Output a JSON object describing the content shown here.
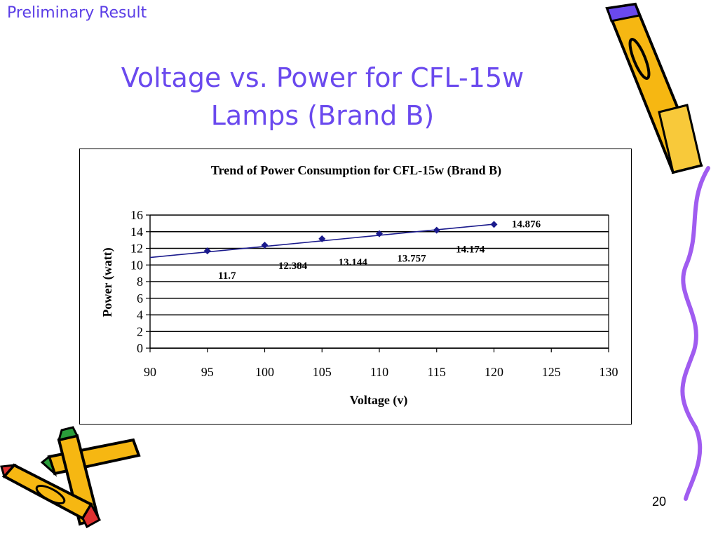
{
  "slide": {
    "header": "Preliminary Result",
    "title_line1": "Voltage vs. Power for CFL-15w",
    "title_line2": "Lamps (Brand B)",
    "page_number": "20"
  },
  "colors": {
    "header": "#5a3de6",
    "title": "#6a49ee",
    "series": "#1a1a8c",
    "squiggle": "#a05cf0"
  },
  "decorations": {
    "top_right": "pencil-icon",
    "bottom_left": "crayons-icon",
    "right_edge": "squiggle-line"
  },
  "chart_data": {
    "type": "scatter",
    "title": "Trend of Power Consumption for CFL-15w (Brand B)",
    "xlabel": "Voltage  (v)",
    "ylabel": "Power  (watt)",
    "xlim": [
      90,
      130
    ],
    "ylim": [
      0,
      16
    ],
    "xticks": [
      90,
      95,
      100,
      105,
      110,
      115,
      120,
      125,
      130
    ],
    "yticks": [
      0,
      2,
      4,
      6,
      8,
      10,
      12,
      14,
      16
    ],
    "grid": "horizontal",
    "series": [
      {
        "x": [
          95,
          100,
          105,
          110,
          115,
          120
        ],
        "y": [
          11.7,
          12.384,
          13.144,
          13.757,
          14.174,
          14.876
        ],
        "labels": [
          "11.7",
          "12.384",
          "13.144",
          "13.757",
          "14.174",
          "14.876"
        ],
        "marker": "diamond"
      }
    ],
    "trendline": {
      "from": [
        90,
        10.9
      ],
      "to": [
        120,
        14.9
      ]
    }
  }
}
